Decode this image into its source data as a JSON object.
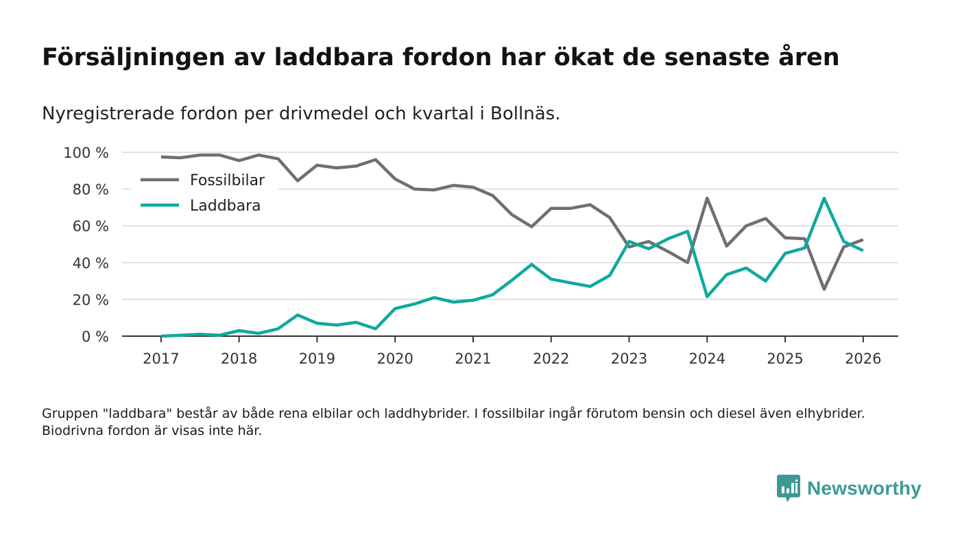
{
  "title": "Försäljningen av laddbara fordon har ökat de senaste åren",
  "subtitle": "Nyregistrerade fordon per drivmedel och kvartal i Bollnäs.",
  "footnote": "Gruppen \"laddbara\" består av både rena elbilar och laddhybrider. I fossilbilar ingår förutom bensin och diesel även elhybrider. Biodrivna fordon är visas inte här.",
  "brand": {
    "name": "Newsworthy",
    "icon": "newsworthy-logo-icon",
    "color": "#3c9a94"
  },
  "chart_data": {
    "type": "line",
    "title": "Försäljningen av laddbara fordon har ökat de senaste åren",
    "subtitle": "Nyregistrerade fordon per drivmedel och kvartal i Bollnäs.",
    "xlabel": "",
    "ylabel": "",
    "x_ticks": [
      "2017",
      "2018",
      "2019",
      "2020",
      "2021",
      "2022",
      "2023",
      "2024",
      "2025",
      "2026"
    ],
    "y_ticks": [
      "0 %",
      "20 %",
      "40 %",
      "60 %",
      "80 %",
      "100 %"
    ],
    "ylim": [
      0,
      100
    ],
    "xlim": [
      2016.5,
      2026.45
    ],
    "grid": true,
    "legend_position": "top-left",
    "x": [
      2017.0,
      2017.25,
      2017.5,
      2017.75,
      2018.0,
      2018.25,
      2018.5,
      2018.75,
      2019.0,
      2019.25,
      2019.5,
      2019.75,
      2020.0,
      2020.25,
      2020.5,
      2020.75,
      2021.0,
      2021.25,
      2021.5,
      2021.75,
      2022.0,
      2022.25,
      2022.5,
      2022.75,
      2023.0,
      2023.25,
      2023.5,
      2023.75,
      2024.0,
      2024.25,
      2024.5,
      2024.75,
      2025.0,
      2025.25,
      2025.5,
      2025.75,
      2026.0
    ],
    "series": [
      {
        "name": "Fossilbilar",
        "color": "#6e6e74",
        "values": [
          97.5,
          97,
          98.5,
          98.5,
          95.5,
          98.5,
          96.5,
          84.5,
          93,
          91.5,
          92.5,
          96,
          85.5,
          80,
          79.5,
          82,
          81,
          76.5,
          66,
          59.5,
          69.5,
          69.5,
          71.5,
          64.5,
          48.5,
          51.5,
          46,
          40,
          75,
          49,
          60,
          64,
          53.5,
          53,
          25.5,
          48.5,
          52.5
        ]
      },
      {
        "name": "Laddbara",
        "color": "#0ea99c",
        "values": [
          0,
          0.5,
          1,
          0.5,
          3,
          1.5,
          4,
          11.5,
          7,
          6,
          7.5,
          4,
          15,
          17.5,
          21,
          18.5,
          19.5,
          22.5,
          30.5,
          39,
          31,
          29,
          27,
          33,
          51.5,
          47.5,
          53,
          57,
          21.5,
          33.5,
          37,
          30,
          45,
          48,
          75,
          51.5,
          46.5
        ]
      }
    ]
  }
}
